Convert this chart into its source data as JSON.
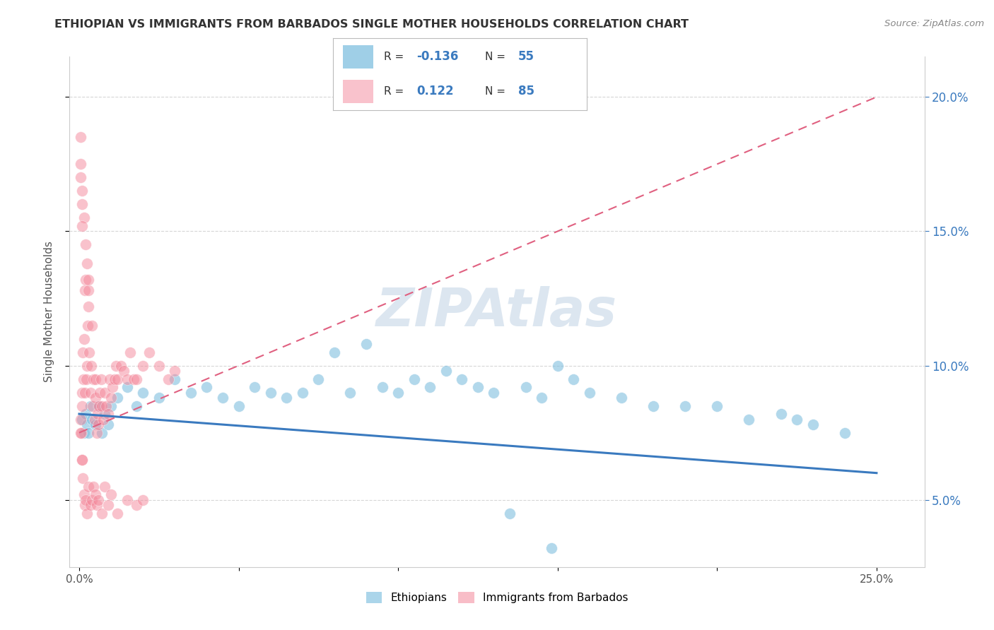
{
  "title": "ETHIOPIAN VS IMMIGRANTS FROM BARBADOS SINGLE MOTHER HOUSEHOLDS CORRELATION CHART",
  "source": "Source: ZipAtlas.com",
  "ylabel": "Single Mother Households",
  "x_tick_labels": [
    "0.0%",
    "",
    "",
    "",
    "",
    "25.0%"
  ],
  "x_tick_values": [
    0.0,
    5.0,
    10.0,
    15.0,
    20.0,
    25.0
  ],
  "y_tick_labels": [
    "5.0%",
    "10.0%",
    "15.0%",
    "20.0%"
  ],
  "y_tick_values": [
    5.0,
    10.0,
    15.0,
    20.0
  ],
  "xlim": [
    -0.3,
    26.5
  ],
  "ylim": [
    2.5,
    21.5
  ],
  "blue_color": "#7fbfdf",
  "pink_color": "#f4879a",
  "trendline_blue_color": "#3a7abf",
  "trendline_pink_color": "#e06080",
  "watermark": "ZIPAtlas",
  "watermark_color": "#dce6f0",
  "background_color": "#ffffff",
  "grid_color": "#cccccc",
  "title_color": "#333333",
  "r_value_color": "#3a7abf",
  "legend_blue_r": "-0.136",
  "legend_blue_n": "55",
  "legend_pink_r": "0.122",
  "legend_pink_n": "85",
  "ethiopian_x": [
    0.1,
    0.15,
    0.2,
    0.25,
    0.3,
    0.35,
    0.4,
    0.5,
    0.6,
    0.7,
    0.8,
    0.9,
    1.0,
    1.2,
    1.5,
    1.8,
    2.0,
    2.5,
    3.0,
    3.5,
    4.0,
    4.5,
    5.0,
    5.5,
    6.0,
    6.5,
    7.0,
    7.5,
    8.0,
    8.5,
    9.0,
    9.5,
    10.0,
    10.5,
    11.0,
    11.5,
    12.0,
    12.5,
    13.0,
    14.0,
    14.5,
    15.0,
    15.5,
    16.0,
    17.0,
    18.0,
    19.0,
    20.0,
    21.0,
    22.0,
    22.5,
    23.0,
    24.0,
    13.5,
    14.8
  ],
  "ethiopian_y": [
    8.0,
    7.5,
    8.2,
    7.8,
    7.5,
    8.5,
    8.0,
    7.8,
    8.5,
    7.5,
    8.2,
    7.8,
    8.5,
    8.8,
    9.2,
    8.5,
    9.0,
    8.8,
    9.5,
    9.0,
    9.2,
    8.8,
    8.5,
    9.2,
    9.0,
    8.8,
    9.0,
    9.5,
    10.5,
    9.0,
    10.8,
    9.2,
    9.0,
    9.5,
    9.2,
    9.8,
    9.5,
    9.2,
    9.0,
    9.2,
    8.8,
    10.0,
    9.5,
    9.0,
    8.8,
    8.5,
    8.5,
    8.5,
    8.0,
    8.2,
    8.0,
    7.8,
    7.5,
    4.5,
    3.2
  ],
  "barbados_x": [
    0.05,
    0.07,
    0.08,
    0.1,
    0.12,
    0.13,
    0.15,
    0.17,
    0.18,
    0.2,
    0.22,
    0.25,
    0.27,
    0.28,
    0.3,
    0.32,
    0.35,
    0.38,
    0.4,
    0.42,
    0.45,
    0.48,
    0.5,
    0.52,
    0.55,
    0.58,
    0.6,
    0.62,
    0.65,
    0.68,
    0.7,
    0.75,
    0.8,
    0.85,
    0.9,
    0.95,
    1.0,
    1.05,
    1.1,
    1.15,
    1.2,
    1.3,
    1.4,
    1.5,
    1.6,
    1.7,
    1.8,
    2.0,
    2.2,
    2.5,
    0.05,
    0.08,
    0.1,
    0.12,
    0.15,
    0.18,
    0.2,
    0.25,
    0.3,
    0.35,
    0.4,
    0.45,
    0.5,
    0.55,
    0.6,
    0.7,
    0.8,
    0.9,
    1.0,
    1.2,
    1.5,
    1.8,
    2.0,
    0.05,
    0.1,
    0.15,
    0.2,
    0.25,
    0.3,
    2.8,
    3.0,
    0.05,
    0.05,
    0.08,
    0.1
  ],
  "barbados_y": [
    8.0,
    7.5,
    8.5,
    9.0,
    10.5,
    9.5,
    11.0,
    9.0,
    12.8,
    13.2,
    9.5,
    10.0,
    11.5,
    12.2,
    12.8,
    10.5,
    9.0,
    10.0,
    11.5,
    8.5,
    9.5,
    8.0,
    9.5,
    8.8,
    7.5,
    8.2,
    7.8,
    8.5,
    9.0,
    9.5,
    8.5,
    8.0,
    9.0,
    8.5,
    8.2,
    9.5,
    8.8,
    9.2,
    9.5,
    10.0,
    9.5,
    10.0,
    9.8,
    9.5,
    10.5,
    9.5,
    9.5,
    10.0,
    10.5,
    10.0,
    7.5,
    6.5,
    6.5,
    5.8,
    5.2,
    4.8,
    5.0,
    4.5,
    5.5,
    4.8,
    5.0,
    5.5,
    5.2,
    4.8,
    5.0,
    4.5,
    5.5,
    4.8,
    5.2,
    4.5,
    5.0,
    4.8,
    5.0,
    17.5,
    16.5,
    15.5,
    14.5,
    13.8,
    13.2,
    9.5,
    9.8,
    18.5,
    17.0,
    16.0,
    15.2
  ]
}
